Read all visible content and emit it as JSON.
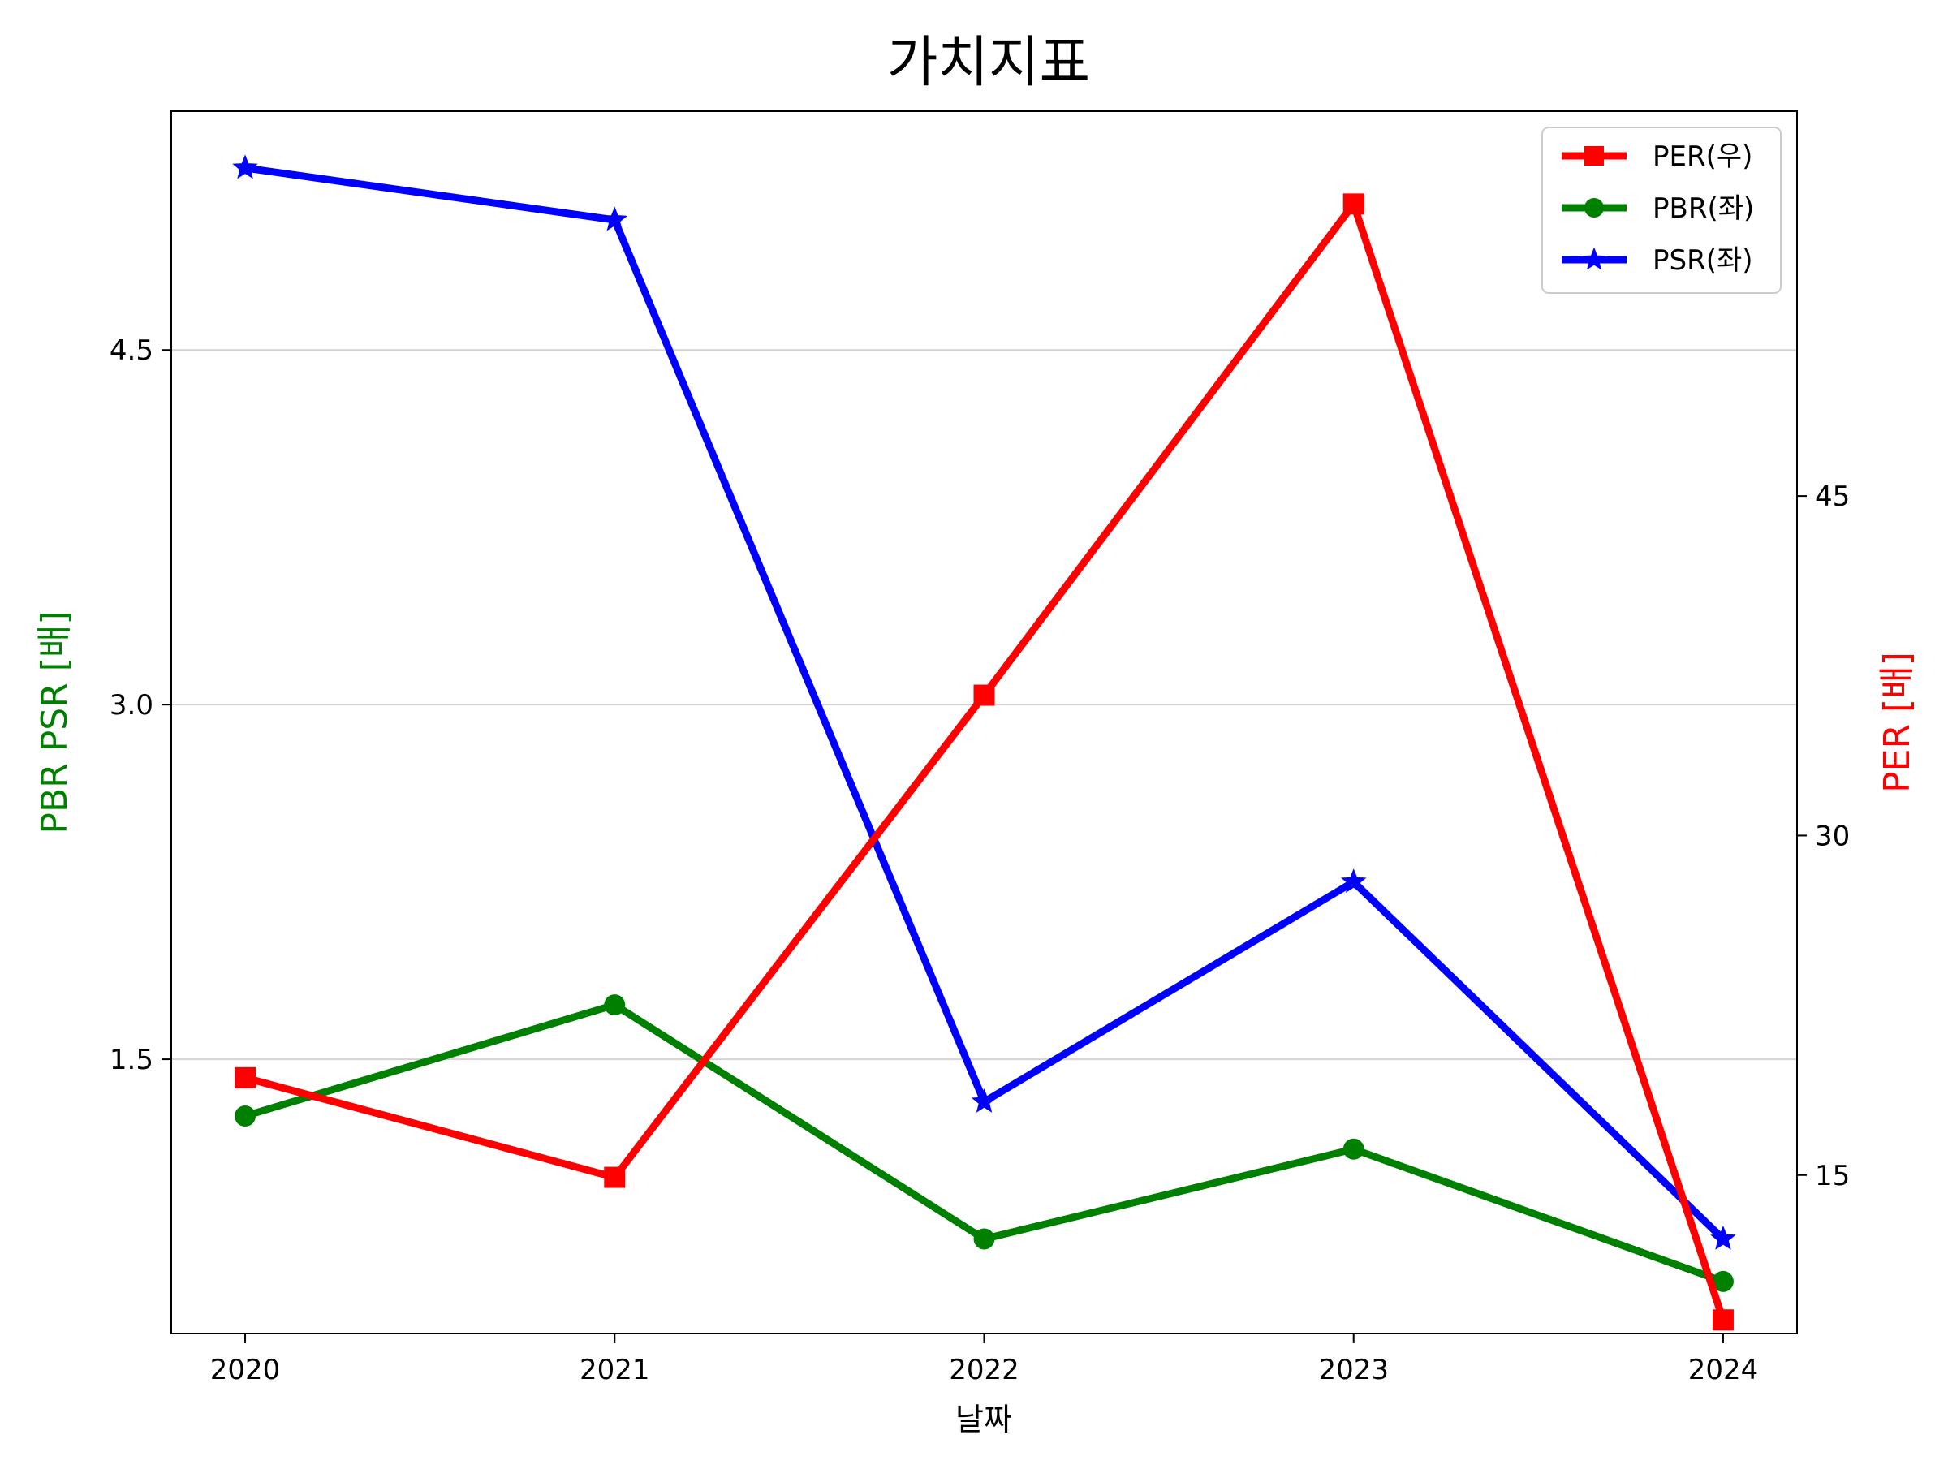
{
  "chart_data": {
    "type": "line",
    "title": "가치지표",
    "xlabel": "날짜",
    "ylabel_left": "PBR PSR [배]",
    "ylabel_right": "PER [배]",
    "categories": [
      "2020",
      "2021",
      "2022",
      "2023",
      "2024"
    ],
    "left_axis": {
      "ylim": [
        0.34,
        5.51
      ],
      "ticks": [
        1.5,
        3.0,
        4.5
      ],
      "tick_labels": [
        "1.5",
        "3.0",
        "4.5"
      ]
    },
    "right_axis": {
      "ylim": [
        8.0,
        62.0
      ],
      "ticks": [
        15,
        30,
        45
      ],
      "tick_labels": [
        "15",
        "30",
        "45"
      ]
    },
    "series": [
      {
        "name": "PER(우)",
        "axis": "right",
        "color": "#ff0000",
        "marker": "square",
        "values": [
          19.3,
          14.9,
          36.2,
          57.9,
          8.6
        ]
      },
      {
        "name": "PBR(좌)",
        "axis": "left",
        "color": "#008000",
        "marker": "circle",
        "values": [
          1.26,
          1.73,
          0.74,
          1.12,
          0.56
        ]
      },
      {
        "name": "PSR(좌)",
        "axis": "left",
        "color": "#0000ff",
        "marker": "star",
        "values": [
          5.27,
          5.05,
          1.32,
          2.25,
          0.74
        ]
      }
    ],
    "grid": "horizontal (left axis)",
    "legend_position": "top-right",
    "left_label_color": "#008000",
    "right_label_color": "#ff0000"
  }
}
